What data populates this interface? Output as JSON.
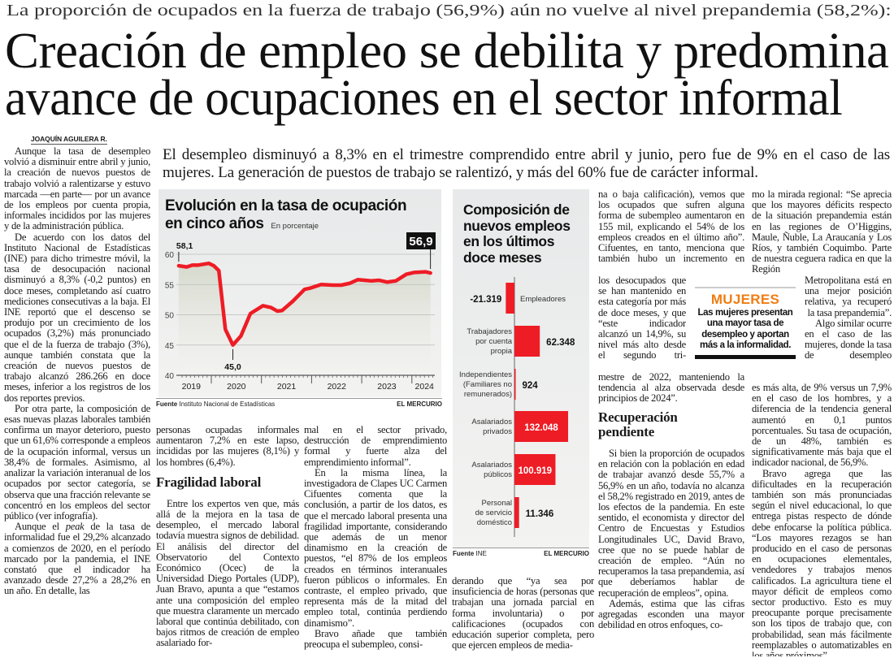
{
  "kicker": "La proporción de ocupados en la fuerza de trabajo (56,9%) aún no vuelve al nivel prepandemia (58,2%):",
  "headline": [
    "Creación de empleo se debilita y predomina",
    "avance de ocupaciones en el sector informal"
  ],
  "byline": "JOAQUÍN AGUILERA R.",
  "deck": "El desempleo disminuyó a 8,3% en el trimestre comprendido entre abril y junio, pero fue de 9% en el caso de las mujeres. La generación de puestos de trabajo se ralentizó, y más del 60% fue de carácter informal.",
  "col1": {
    "p1": "Aunque la tasa de desempleo volvió a disminuir entre abril y junio, la creación de nuevos puestos de trabajo volvió a ralentizarse y estuvo marcada —en parte— por un avance de los empleos por cuenta propia, informales incididos por las mujeres y de la administración pública.",
    "p2": "De acuerdo con los datos del Instituto Nacional de Estadísticas (INE) para dicho trimestre móvil, la tasa de desocupación nacional disminuyó a 8,3% (-0,2 puntos) en doce meses, completando así cuatro mediciones consecutivas a la baja. El INE reportó que el descenso se produjo por un crecimiento de los ocupados (3,2%) más pronunciado que el de la fuerza de trabajo (3%), aunque también constata que la creación de nuevos puestos de trabajo alcanzó 286.266 en doce meses, inferior a los registros de los dos reportes previos.",
    "p3": "Por otra parte, la composición de esas nuevas plazas laborales también confirma un mayor deterioro, puesto que un 61,6% corresponde a empleos de la ocupación informal, versus un 38,4% de formales. Asimismo, al analizar la variación interanual de los ocupados por sector categoría, se observa que una fracción relevante se concentró en los empleos del sector público (ver infografía).",
    "p4a": "Aunque el ",
    "p4i": "peak",
    "p4b": " de la tasa de informalidad fue el 29,2% alcanzado a comienzos de 2020, en el período marcado por la pandemia, el INE constató que el indicador ha avanzado desde 27,2% a 28,2% en un año. En detalle, las"
  },
  "col2": {
    "p1": "personas ocupadas informales aumentaron 7,2% en este lapso, incididas por las mujeres (8,1%) y los hombres (6,4%).",
    "heading": "Fragilidad laboral",
    "p2": "Entre los expertos ven que, más allá de la mejora en la tasa de desempleo, el mercado laboral todavía muestra signos de debilidad. El análisis del director del Observatorio del Contexto Económico (Ocec) de la Universidad Diego Portales (UDP), Juan Bravo, apunta a que “estamos ante una composición del empleo que muestra claramente un mercado laboral que continúa debilitado, con bajos ritmos de creación de empleo asalariado for-"
  },
  "col3": {
    "p1": "mal en el sector privado, destrucción de emprendimiento formal y fuerte alza del emprendimiento informal”.",
    "p2": "En la misma línea, la investigadora de Clapes UC Carmen Cifuentes comenta que la conclusión, a partir de los datos, es que el mercado laboral presenta una fragilidad importante, considerando que además de un menor dinamismo en la creación de puestos, “el 87% de los empleos creados en términos interanuales fueron públicos o informales. En contraste, el empleo privado, que representa más de la mitad del empleo total, continúa perdiendo dinamismo”.",
    "p3": "Bravo añade que también preocupa el subempleo, consi-"
  },
  "col3b": {
    "p1": "derando que “ya sea por insuficiencia de horas (personas que trabajan una jornada parcial en forma involuntaria) o por calificaciones (ocupados con educación superior completa, pero que ejercen empleos de media-"
  },
  "col4": {
    "s1": "na o baja calificación), vemos que los ocupados que sufren alguna forma de subempleo aumentaron en 155 mil, explicando el 54% de los empleos creados en el último año”. Cifuentes, en tanto, menciona que también hubo un incremento en",
    "s2": "los desocupados que se han mantenido en esta categoría por más de doce meses, y que “este indicador alcanzó un 14,9%, su nivel más alto desde el segundo tri-",
    "s3": "mestre de 2022, manteniendo la tendencia al alza observada desde principios de 2024”.",
    "heading": "Recuperación pendiente",
    "p1": "Si bien la proporción de ocupados en relación con la población en edad de trabajar avanzó desde 55,7% a 56,9% en un año, todavía no alcanza el 58,2% registrado en 2019, antes de los efectos de la pandemia. En este sentido, el economista y director del Centro de Encuestas y Estudios Longitudinales UC, David Bravo, cree que no se puede hablar de creación de empleo. “Aún no recuperamos la tasa prepandemia, así que deberíamos hablar de recuperación de empleos”, opina.",
    "p2": "Además, estima que las cifras agregadas esconden una mayor debilidad en otros enfoques, co-"
  },
  "col5": {
    "s1": "mo la mirada regional: “Se aprecia que los mayores déficits respecto de la situación prepandemia están en las regiones de O’Higgins, Maule, Ñuble, La Araucanía y Los Ríos, y también Coquimbo. Parte de nuestra ceguera radica en que la Región",
    "s2a": "Metropolitana está en una mejor posición relativa, ya recuperó la tasa prepandemia”.",
    "s2b": "Algo similar ocurre en el caso de las mujeres, donde la tasa de desempleo",
    "s3": "es más alta, de 9% versus un 7,9% en el caso de los hombres, y a diferencia de la tendencia general aumentó en 0,1 puntos porcentuales. Su tasa de ocupación, de un 48%, también es significativamente más baja que el indicador nacional, de 56,9%.",
    "p2": "Bravo agrega que las dificultades en la recuperación también son más pronunciadas según el nivel educacional, lo que entrega pistas respecto de dónde debe enfocarse la política pública. “Los mayores rezagos se han producido en el caso de personas en ocupaciones elementales, vendedores y trabajos menos calificados. La agricultura tiene el mayor déficit de empleos como sector productivo. Esto es muy preocupante porque precisamente son los tipos de trabajo que, con probabilidad, sean más fácilmente reemplazables o automatizables en los años próximos”."
  },
  "callout": {
    "tag": "MUJERES",
    "text": "Las mujeres presentan una mayor tasa de desempleo y aportan más a la informalidad.",
    "tag_color": "#f07d13"
  },
  "chart_data": [
    {
      "type": "line",
      "title": "Evolución en la tasa de ocupación en cinco años",
      "title_lines": [
        "Evolución en la tasa de ocupación",
        "en cinco años"
      ],
      "subtitle": "En porcentaje",
      "ylim": [
        40,
        60
      ],
      "yticks": [
        "60",
        "55",
        "50",
        "45",
        "40"
      ],
      "xticks": [
        "2019",
        "2020",
        "2021",
        "2022",
        "2023",
        "2024"
      ],
      "grid": true,
      "color": "#ee1c25",
      "annotations": {
        "start": "58,1",
        "min": "45,0",
        "last": "56,9"
      },
      "points": [
        [
          2019.35,
          58.1
        ],
        [
          2019.51,
          57.9
        ],
        [
          2019.62,
          58.2
        ],
        [
          2019.73,
          58.2
        ],
        [
          2019.95,
          58.5
        ],
        [
          2020.05,
          58.1
        ],
        [
          2020.15,
          57.3
        ],
        [
          2020.28,
          47.6
        ],
        [
          2020.43,
          45.0
        ],
        [
          2020.59,
          46.5
        ],
        [
          2020.78,
          50.2
        ],
        [
          2021.03,
          51.5
        ],
        [
          2021.19,
          51.2
        ],
        [
          2021.32,
          50.6
        ],
        [
          2021.41,
          50.7
        ],
        [
          2021.62,
          52.2
        ],
        [
          2021.86,
          54.2
        ],
        [
          2021.97,
          54.4
        ],
        [
          2022.19,
          55.0
        ],
        [
          2022.43,
          54.9
        ],
        [
          2022.59,
          54.9
        ],
        [
          2022.76,
          55.2
        ],
        [
          2022.92,
          55.8
        ],
        [
          2023.19,
          55.6
        ],
        [
          2023.35,
          55.7
        ],
        [
          2023.51,
          55.4
        ],
        [
          2023.68,
          55.6
        ],
        [
          2023.89,
          56.7
        ],
        [
          2024.05,
          57.0
        ],
        [
          2024.27,
          57.1
        ],
        [
          2024.37,
          56.9
        ]
      ],
      "source_label": "Fuente",
      "source": "Instituto Nacional de Estadísticas",
      "credit": "EL MERCURIO"
    },
    {
      "type": "bar",
      "title": "Composición de nuevos empleos en los últimos doce meses",
      "title_lines": [
        "Composición de",
        "nuevos empleos",
        "en los últimos",
        "doce meses"
      ],
      "color": "#ee1c25",
      "categories": [
        [
          "Empleadores"
        ],
        [
          "Trabajadores",
          "por cuenta",
          "propia"
        ],
        [
          "Independientes",
          "(Familiares no",
          "remunerados)"
        ],
        [
          "Asalariados",
          "privados"
        ],
        [
          "Asalariados",
          "públicos"
        ],
        [
          "Personal",
          "de servicio",
          "doméstico"
        ]
      ],
      "values": [
        -21319,
        62348,
        924,
        132048,
        100919,
        11346
      ],
      "value_labels": [
        "-21.319",
        "62.348",
        "924",
        "132.048",
        "100.919",
        "11.346"
      ],
      "source_label": "Fuente",
      "source": "INE",
      "credit": "EL MERCURIO"
    }
  ]
}
